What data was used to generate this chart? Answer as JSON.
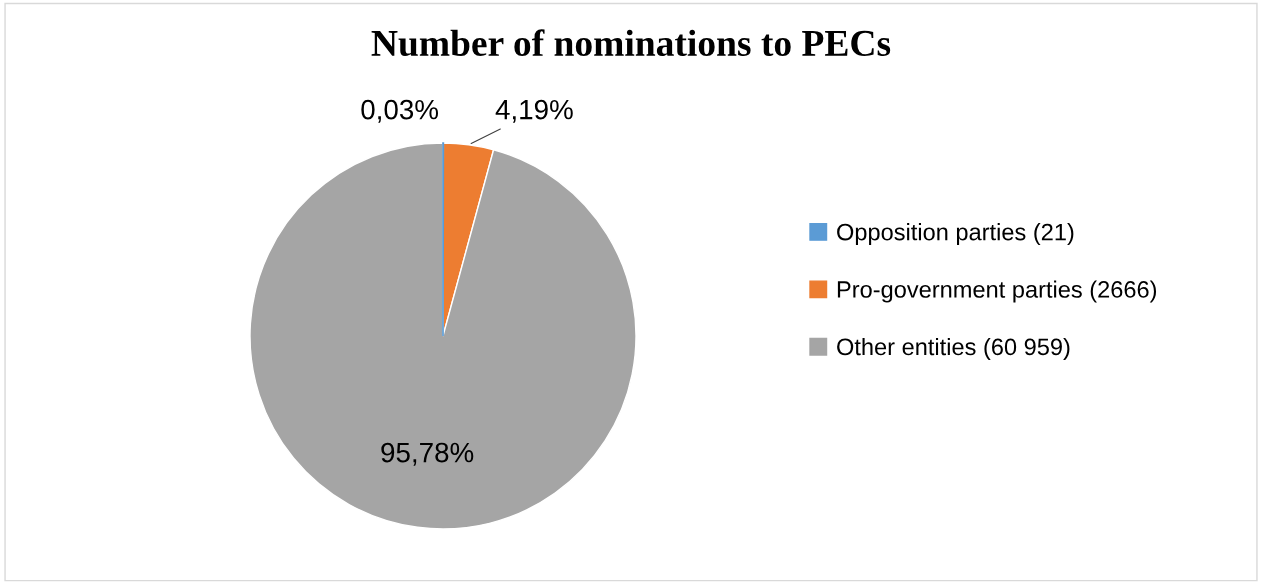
{
  "chart_data": {
    "type": "pie",
    "title": "Number of nominations to PECs",
    "categories": [
      "Opposition parties (21)",
      "Pro-government parties (2666)",
      "Other entities (60 959)"
    ],
    "values": [
      0.03,
      4.19,
      95.78
    ],
    "value_labels": [
      "0,03%",
      "4,19%",
      "95,78%"
    ],
    "colors": [
      "#5b9bd5",
      "#ed7d31",
      "#a5a5a5"
    ],
    "legend": "right"
  }
}
